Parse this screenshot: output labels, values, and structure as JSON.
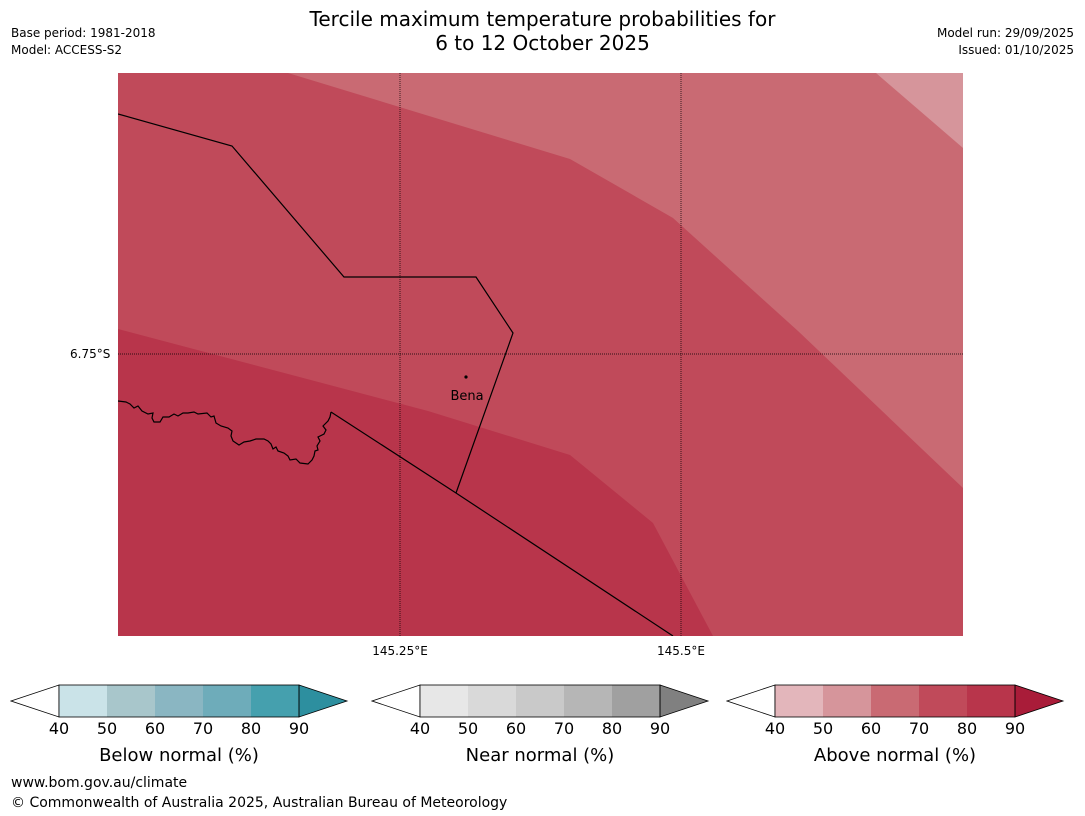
{
  "header": {
    "title_line1": "Tercile maximum temperature probabilities for",
    "title_line2": "6 to 12 October 2025",
    "base_period": "Base period: 1981-2018",
    "model": "Model: ACCESS-S2",
    "model_run": "Model run: 29/09/2025",
    "issued": "Issued: 01/10/2025"
  },
  "map": {
    "lat_label": "6.75°S",
    "lon_labels": [
      "145.25°E",
      "145.5°E"
    ],
    "place": "Bena",
    "colors": {
      "above_60_70": "#c96a73",
      "above_50_60": "#d6959b",
      "above_70_80": "#c04a5a",
      "above_80_90": "#b8354b"
    }
  },
  "colorbars": [
    {
      "label": "Below normal (%)",
      "ticks": [
        "40",
        "50",
        "60",
        "70",
        "80",
        "90"
      ],
      "colors": [
        "#ffffff",
        "#cae3e8",
        "#a8c6cb",
        "#8ab6c2",
        "#6eacba",
        "#45a0ae",
        "#2d8f9f"
      ]
    },
    {
      "label": "Near normal (%)",
      "ticks": [
        "40",
        "50",
        "60",
        "70",
        "80",
        "90"
      ],
      "colors": [
        "#ffffff",
        "#e7e7e7",
        "#d9d9d9",
        "#c9c9c9",
        "#b6b6b6",
        "#a0a0a0",
        "#808080"
      ]
    },
    {
      "label": "Above normal (%)",
      "ticks": [
        "40",
        "50",
        "60",
        "70",
        "80",
        "90"
      ],
      "colors": [
        "#ffffff",
        "#e3b6bb",
        "#d6959b",
        "#c96a73",
        "#c04a5a",
        "#b8354b",
        "#a91c39"
      ]
    }
  ],
  "footer": {
    "url": "www.bom.gov.au/climate",
    "copyright": "© Commonwealth of Australia 2025, Australian Bureau of Meteorology"
  }
}
